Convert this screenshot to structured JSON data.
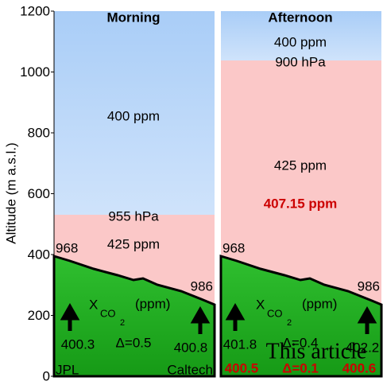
{
  "y_axis": {
    "label": "Altitude (m a.s.l.)",
    "ticks": [
      0,
      200,
      400,
      600,
      800,
      1000,
      1200
    ]
  },
  "panels": [
    {
      "title": "Morning",
      "upper_label": "400 ppm",
      "pressure": "955 hPa",
      "lower_label": "425 ppm",
      "left_alt": "968",
      "right_alt": "986",
      "xco2": "X",
      "xco2_sub": "CO",
      "xco2_sub2": "2",
      "unit": "(ppm)",
      "left_value": "400.3",
      "delta": "Δ=0.5",
      "right_value": "400.8",
      "left_site": "JPL",
      "right_site": "Caltech"
    },
    {
      "title": "Afternoon",
      "upper_label": "400 ppm",
      "pressure": "900 hPa",
      "lower_label": "425 ppm",
      "mixed_label": "407.15 ppm",
      "left_alt": "968",
      "right_alt": "986",
      "xco2": "X",
      "xco2_sub": "CO",
      "xco2_sub2": "2",
      "unit": "(ppm)",
      "left_value": "401.8",
      "delta": "Δ=0.4",
      "right_value": "402.2",
      "overlay": "This article",
      "article_left": "400.5",
      "article_delta": "Δ=0.1",
      "article_right": "400.6"
    }
  ]
}
